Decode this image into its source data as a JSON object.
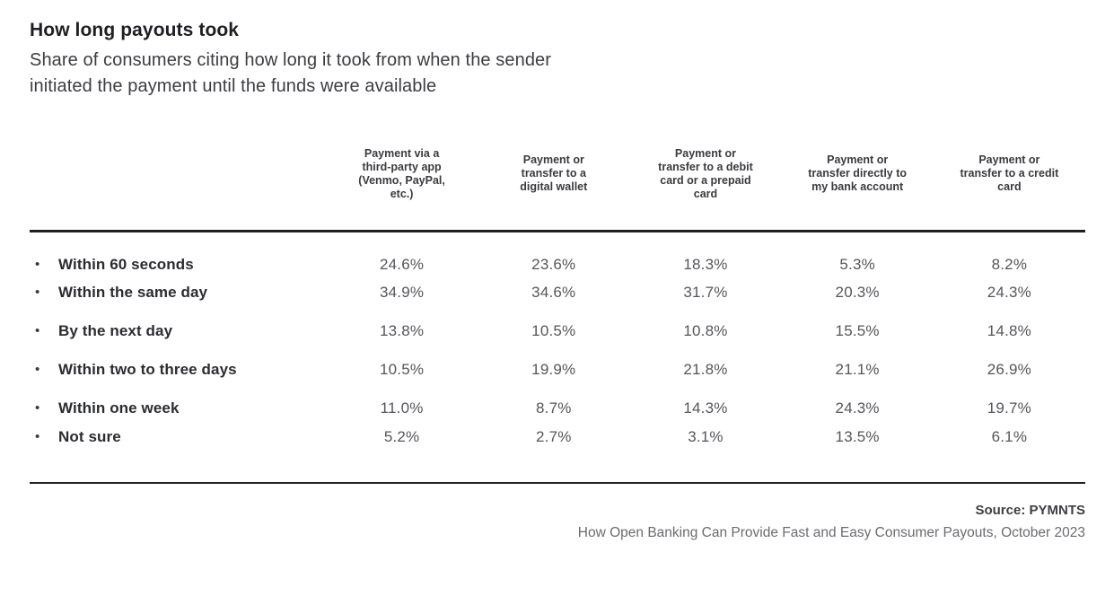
{
  "header": {
    "title": "How long payouts took",
    "subtitle_lines": [
      "Share of consumers citing how long it took from when the sender",
      "initiated the payment until the funds were available"
    ]
  },
  "table": {
    "bullet": "•",
    "columns": [
      "Payment via a third-party app (Venmo, PayPal, etc.)",
      "Payment or transfer to a digital wallet",
      "Payment or transfer to a debit card or a prepaid card",
      "Payment or transfer directly to my bank account",
      "Payment or transfer to a credit card"
    ],
    "rows": [
      {
        "label": "Within 60 seconds",
        "values": [
          "24.6%",
          "23.6%",
          "18.3%",
          "5.3%",
          "8.2%"
        ]
      },
      {
        "label": "Within the same day",
        "values": [
          "34.9%",
          "34.6%",
          "31.7%",
          "20.3%",
          "24.3%"
        ]
      },
      {
        "label": "By the next day",
        "values": [
          "13.8%",
          "10.5%",
          "10.8%",
          "15.5%",
          "14.8%"
        ]
      },
      {
        "label": "Within two to three days",
        "values": [
          "10.5%",
          "19.9%",
          "21.8%",
          "21.1%",
          "26.9%"
        ]
      },
      {
        "label": "Within one week",
        "values": [
          "11.0%",
          "8.7%",
          "14.3%",
          "24.3%",
          "19.7%"
        ]
      },
      {
        "label": "Not sure",
        "values": [
          "5.2%",
          "2.7%",
          "3.1%",
          "13.5%",
          "6.1%"
        ]
      }
    ]
  },
  "footer": {
    "source": "Source: PYMNTS",
    "attribution": "How Open Banking Can Provide Fast and Easy Consumer Payouts, October 2023"
  },
  "colors": {
    "title_text": "#1e1f23",
    "body_text": "#3c3d41",
    "value_text": "#55565a",
    "rule": "#1f1f1f",
    "attribution_text": "#6b6c70",
    "background": "#ffffff"
  },
  "chart_data": {
    "type": "table",
    "title": "How long payouts took",
    "subtitle": "Share of consumers citing how long it took from when the sender initiated the payment until the funds were available",
    "categories": [
      "Within 60 seconds",
      "Within the same day",
      "By the next day",
      "Within two to three days",
      "Within one week",
      "Not sure"
    ],
    "unit": "percent",
    "series": [
      {
        "name": "Payment via a third-party app (Venmo, PayPal, etc.)",
        "values": [
          24.6,
          34.9,
          13.8,
          10.5,
          11.0,
          5.2
        ]
      },
      {
        "name": "Payment or transfer to a digital wallet",
        "values": [
          23.6,
          34.6,
          10.5,
          19.9,
          8.7,
          2.7
        ]
      },
      {
        "name": "Payment or transfer to a debit card or a prepaid card",
        "values": [
          18.3,
          31.7,
          10.8,
          21.8,
          14.3,
          3.1
        ]
      },
      {
        "name": "Payment or transfer directly to my bank account",
        "values": [
          5.3,
          20.3,
          15.5,
          21.1,
          24.3,
          13.5
        ]
      },
      {
        "name": "Payment or transfer to a credit card",
        "values": [
          8.2,
          24.3,
          14.8,
          26.9,
          19.7,
          6.1
        ]
      }
    ],
    "source": "Source: PYMNTS",
    "note": "How Open Banking Can Provide Fast and Easy Consumer Payouts, October 2023"
  }
}
